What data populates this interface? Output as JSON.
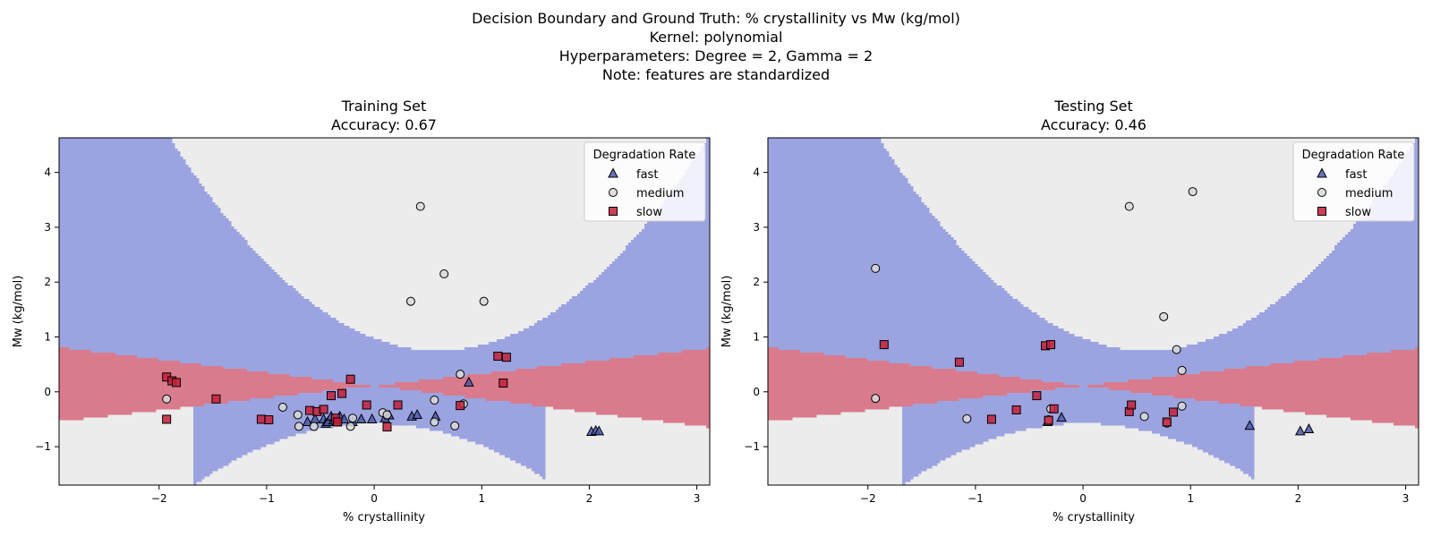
{
  "figure": {
    "suptitle": [
      "Decision Boundary and Ground Truth: % crystallinity vs Mw (kg/mol)",
      "Kernel: polynomial",
      "Hyperparameters: Degree = 2, Gamma = 2",
      "Note: features are standardized"
    ]
  },
  "colors": {
    "region_fast": "#9ba4e0",
    "region_medium": "#ececec",
    "region_slow": "#d97b8c",
    "point_fast": "#4b5bab",
    "point_medium": "#d9d9d9",
    "point_slow": "#c3203a",
    "edge": "#000000"
  },
  "chart_data": [
    {
      "type": "scatter",
      "title": "Training Set",
      "subtitle": "Accuracy: 0.67",
      "xlabel": "% crystallinity",
      "ylabel": "Mw (kg/mol)",
      "xlim": [
        -2.93,
        3.12
      ],
      "ylim": [
        -1.7,
        4.63
      ],
      "xticks": [
        -2,
        -1,
        0,
        1,
        2,
        3
      ],
      "yticks": [
        -1,
        0,
        1,
        2,
        3,
        4
      ],
      "grid": false,
      "legend": {
        "title": "Degradation Rate",
        "position": "top-right",
        "entries": [
          "fast",
          "medium",
          "slow"
        ]
      },
      "regions": [
        "fast",
        "medium",
        "slow"
      ],
      "series": [
        {
          "name": "fast",
          "marker": "triangle",
          "points": [
            [
              -0.62,
              -0.55
            ],
            [
              -0.55,
              -0.5
            ],
            [
              -0.47,
              -0.5
            ],
            [
              -0.45,
              -0.58
            ],
            [
              -0.43,
              -0.55
            ],
            [
              -0.4,
              -0.45
            ],
            [
              -0.38,
              -0.52
            ],
            [
              -0.35,
              -0.55
            ],
            [
              -0.32,
              -0.45
            ],
            [
              -0.28,
              -0.5
            ],
            [
              -0.2,
              -0.55
            ],
            [
              -0.12,
              -0.5
            ],
            [
              -0.02,
              -0.5
            ],
            [
              0.1,
              -0.48
            ],
            [
              0.14,
              -0.43
            ],
            [
              0.35,
              -0.45
            ],
            [
              0.4,
              -0.42
            ],
            [
              0.57,
              -0.45
            ],
            [
              0.88,
              0.17
            ],
            [
              2.02,
              -0.73
            ],
            [
              2.06,
              -0.71
            ],
            [
              2.09,
              -0.72
            ]
          ]
        },
        {
          "name": "medium",
          "marker": "circle",
          "points": [
            [
              0.43,
              3.38
            ],
            [
              0.65,
              2.15
            ],
            [
              0.34,
              1.65
            ],
            [
              1.02,
              1.65
            ],
            [
              0.8,
              0.32
            ],
            [
              0.83,
              -0.22
            ],
            [
              0.56,
              -0.15
            ],
            [
              0.56,
              -0.55
            ],
            [
              0.75,
              -0.62
            ],
            [
              -1.93,
              -0.13
            ],
            [
              -0.85,
              -0.28
            ],
            [
              -0.71,
              -0.42
            ],
            [
              -0.7,
              -0.63
            ],
            [
              -0.56,
              -0.63
            ],
            [
              -0.22,
              -0.63
            ],
            [
              -0.2,
              -0.48
            ],
            [
              0.08,
              -0.38
            ],
            [
              0.12,
              -0.42
            ]
          ]
        },
        {
          "name": "slow",
          "marker": "square",
          "points": [
            [
              -1.93,
              0.27
            ],
            [
              -1.88,
              0.2
            ],
            [
              -1.84,
              0.17
            ],
            [
              -1.93,
              -0.5
            ],
            [
              -1.47,
              -0.13
            ],
            [
              -1.05,
              -0.5
            ],
            [
              -0.98,
              -0.51
            ],
            [
              -0.6,
              -0.34
            ],
            [
              -0.53,
              -0.36
            ],
            [
              -0.47,
              -0.32
            ],
            [
              -0.4,
              -0.07
            ],
            [
              -0.36,
              -0.48
            ],
            [
              -0.34,
              -0.55
            ],
            [
              -0.3,
              -0.03
            ],
            [
              -0.22,
              0.23
            ],
            [
              -0.07,
              -0.24
            ],
            [
              0.12,
              -0.64
            ],
            [
              0.22,
              -0.24
            ],
            [
              0.8,
              -0.25
            ],
            [
              1.15,
              0.65
            ],
            [
              1.23,
              0.63
            ],
            [
              1.2,
              0.16
            ]
          ]
        }
      ]
    },
    {
      "type": "scatter",
      "title": "Testing Set",
      "subtitle": "Accuracy: 0.46",
      "xlabel": "% crystallinity",
      "ylabel": "Mw (kg/mol)",
      "xlim": [
        -2.93,
        3.12
      ],
      "ylim": [
        -1.7,
        4.63
      ],
      "xticks": [
        -2,
        -1,
        0,
        1,
        2,
        3
      ],
      "yticks": [
        -1,
        0,
        1,
        2,
        3,
        4
      ],
      "grid": false,
      "legend": {
        "title": "Degradation Rate",
        "position": "top-right",
        "entries": [
          "fast",
          "medium",
          "slow"
        ]
      },
      "regions": [
        "fast",
        "medium",
        "slow"
      ],
      "series": [
        {
          "name": "fast",
          "marker": "triangle",
          "points": [
            [
              -0.33,
              -0.55
            ],
            [
              -0.2,
              -0.47
            ],
            [
              1.55,
              -0.62
            ],
            [
              2.02,
              -0.72
            ],
            [
              2.1,
              -0.68
            ]
          ]
        },
        {
          "name": "medium",
          "marker": "circle",
          "points": [
            [
              -1.93,
              2.25
            ],
            [
              -1.93,
              -0.12
            ],
            [
              0.43,
              3.38
            ],
            [
              1.02,
              3.65
            ],
            [
              0.75,
              1.37
            ],
            [
              0.87,
              0.77
            ],
            [
              0.92,
              0.39
            ],
            [
              0.92,
              -0.26
            ],
            [
              -1.08,
              -0.49
            ],
            [
              -0.32,
              -0.51
            ],
            [
              -0.3,
              -0.31
            ],
            [
              0.57,
              -0.45
            ],
            [
              0.78,
              -0.57
            ]
          ]
        },
        {
          "name": "slow",
          "marker": "square",
          "points": [
            [
              -1.85,
              0.86
            ],
            [
              -1.15,
              0.54
            ],
            [
              -0.35,
              0.84
            ],
            [
              -0.3,
              0.86
            ],
            [
              -0.43,
              -0.07
            ],
            [
              -0.62,
              -0.33
            ],
            [
              -0.85,
              -0.5
            ],
            [
              -0.32,
              -0.52
            ],
            [
              -0.27,
              -0.31
            ],
            [
              0.43,
              -0.36
            ],
            [
              0.45,
              -0.24
            ],
            [
              0.84,
              -0.37
            ],
            [
              0.78,
              -0.55
            ]
          ]
        }
      ]
    }
  ]
}
